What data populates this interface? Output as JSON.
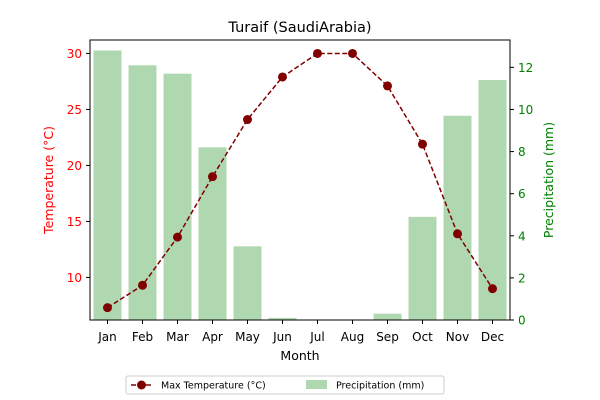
{
  "chart_data": {
    "type": "bar+line",
    "title": "Turaif (SaudiArabia)",
    "xlabel": "Month",
    "categories": [
      "Jan",
      "Feb",
      "Mar",
      "Apr",
      "May",
      "Jun",
      "Jul",
      "Aug",
      "Sep",
      "Oct",
      "Nov",
      "Dec"
    ],
    "left_axis": {
      "label": "Temperature (°C)",
      "color": "#ff0000",
      "ylim": [
        6.2,
        31.2
      ],
      "ticks": [
        10,
        15,
        20,
        25,
        30
      ]
    },
    "right_axis": {
      "label": "Precipitation (mm)",
      "color": "#008000",
      "ylim": [
        0,
        13.3
      ],
      "ticks": [
        0,
        2,
        4,
        6,
        8,
        10,
        12
      ]
    },
    "series": [
      {
        "name": "Max Temperature (°C)",
        "kind": "line",
        "axis": "left",
        "color": "#800000",
        "values": [
          7.3,
          9.3,
          13.6,
          19.0,
          24.1,
          27.9,
          30.0,
          30.0,
          27.1,
          21.9,
          13.9,
          9.0
        ]
      },
      {
        "name": "Precipitation (mm)",
        "kind": "bar",
        "axis": "right",
        "color": "#b0d8b0",
        "values": [
          12.8,
          12.1,
          11.7,
          8.2,
          3.5,
          0.1,
          0.0,
          0.0,
          0.3,
          4.9,
          9.7,
          11.4
        ]
      }
    ],
    "legend": {
      "placement": "bottom-center"
    }
  }
}
